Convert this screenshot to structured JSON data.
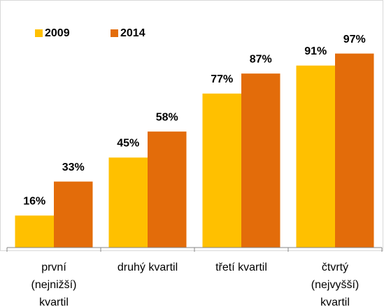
{
  "chart_data": {
    "type": "bar",
    "categories": [
      "první\n(nejnižší)\nkvartil",
      "druhý kvartil",
      "třetí kvartil",
      "čtvrtý\n(nejvyšší)\nkvartil"
    ],
    "series": [
      {
        "name": "2009",
        "color": "#ffc000",
        "values": [
          16,
          45,
          77,
          91
        ],
        "value_labels": [
          "16%",
          "45%",
          "77%",
          "91%"
        ]
      },
      {
        "name": "2014",
        "color": "#e36c0a",
        "values": [
          33,
          58,
          87,
          97
        ],
        "value_labels": [
          "33%",
          "58%",
          "87%",
          "97%"
        ]
      }
    ],
    "ylim": [
      0,
      100
    ],
    "legend": "top-left"
  }
}
